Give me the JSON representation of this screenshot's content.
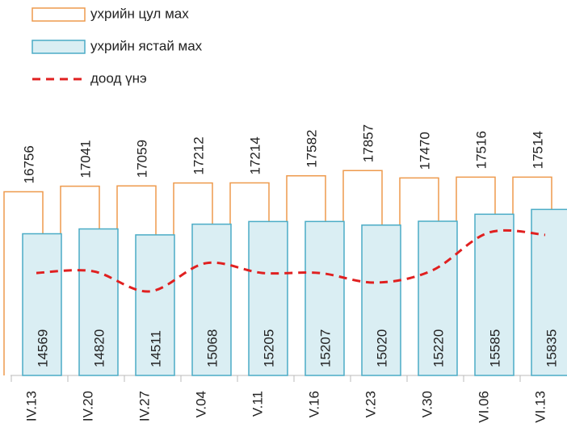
{
  "chart_data": {
    "type": "bar",
    "categories": [
      "IV.13",
      "IV.20",
      "IV.27",
      "V.04",
      "V.11",
      "V.16",
      "V.23",
      "V.30",
      "VI.06",
      "VI.13"
    ],
    "series": [
      {
        "name": "ухрийн цул мах",
        "kind": "outline-bar",
        "color": "#ee9a4d",
        "values": [
          16756,
          17041,
          17059,
          17212,
          17214,
          17582,
          17857,
          17470,
          17516,
          17514
        ]
      },
      {
        "name": "ухрийн ястай мах",
        "kind": "bar",
        "color": "#4bacc6",
        "fill": "#daeef3",
        "values": [
          14569,
          14820,
          14511,
          15068,
          15205,
          15207,
          15020,
          15220,
          15585,
          15835
        ]
      },
      {
        "name": "доод үнэ",
        "kind": "line",
        "dashed": true,
        "color": "#e02020",
        "values": [
          12530,
          12620,
          11570,
          13040,
          12530,
          12530,
          12030,
          12660,
          14630,
          14510
        ]
      }
    ],
    "ylim": [
      7200,
      19000
    ]
  }
}
